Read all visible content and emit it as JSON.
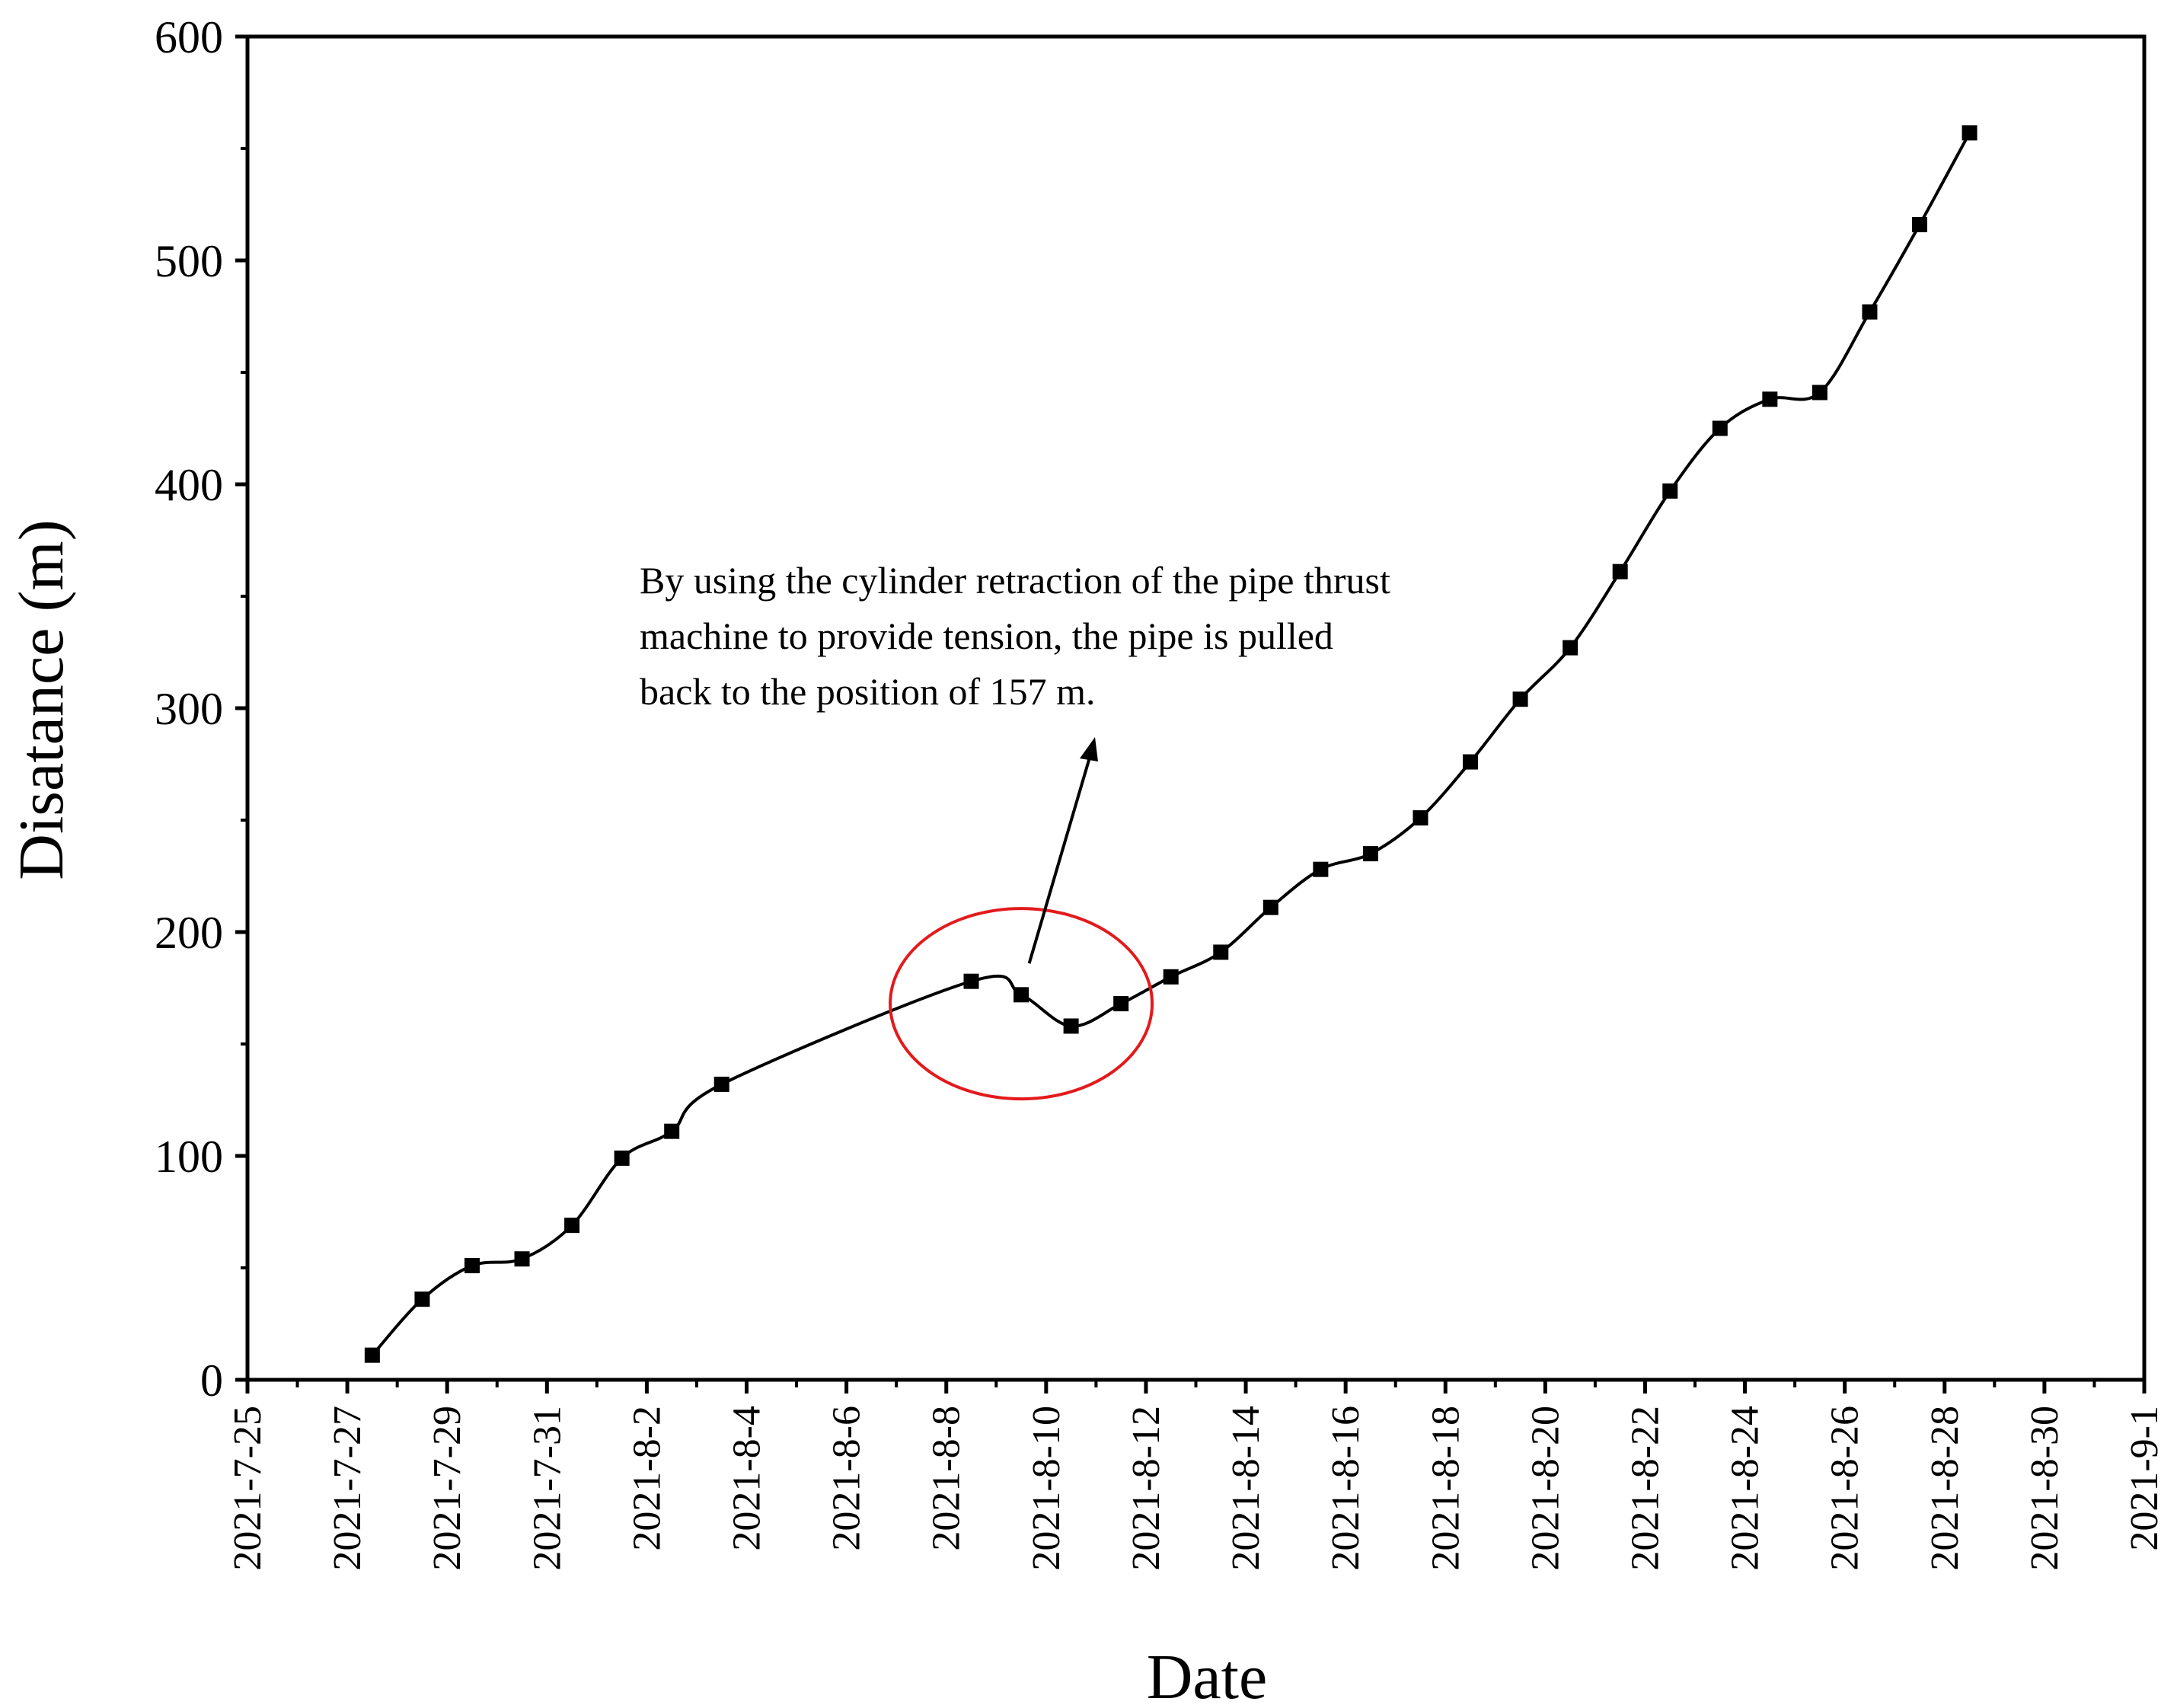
{
  "chart_data": {
    "type": "line",
    "xlabel": "Date",
    "ylabel": "Disatance (m)",
    "xlim": [
      "2021-7-25",
      "2021-9-1"
    ],
    "ylim": [
      0,
      600
    ],
    "x_ticks": [
      "2021-7-25",
      "2021-7-27",
      "2021-7-29",
      "2021-7-31",
      "2021-8-2",
      "2021-8-4",
      "2021-8-6",
      "2021-8-8",
      "2021-8-10",
      "2021-8-12",
      "2021-8-14",
      "2021-8-16",
      "2021-8-18",
      "2021-8-20",
      "2021-8-22",
      "2021-8-24",
      "2021-8-26",
      "2021-8-28",
      "2021-8-30",
      "2021-9-1"
    ],
    "y_ticks": [
      "0",
      "100",
      "200",
      "300",
      "400",
      "500",
      "600"
    ],
    "grid": false,
    "series": [
      {
        "marker": "square",
        "color": "#000000",
        "points": [
          {
            "x": "2021-07-27T12:00",
            "y": 11
          },
          {
            "x": "2021-07-28T12:00",
            "y": 36
          },
          {
            "x": "2021-07-29T12:00",
            "y": 51
          },
          {
            "x": "2021-07-30T12:00",
            "y": 54
          },
          {
            "x": "2021-07-31T12:00",
            "y": 69
          },
          {
            "x": "2021-08-01T12:00",
            "y": 99
          },
          {
            "x": "2021-08-02T12:00",
            "y": 111
          },
          {
            "x": "2021-08-03T12:00",
            "y": 132
          },
          {
            "x": "2021-08-08T12:00",
            "y": 178
          },
          {
            "x": "2021-08-09T12:00",
            "y": 172
          },
          {
            "x": "2021-08-10T12:00",
            "y": 158
          },
          {
            "x": "2021-08-11T12:00",
            "y": 168
          },
          {
            "x": "2021-08-12T12:00",
            "y": 180
          },
          {
            "x": "2021-08-13T12:00",
            "y": 191
          },
          {
            "x": "2021-08-14T12:00",
            "y": 211
          },
          {
            "x": "2021-08-15T12:00",
            "y": 228
          },
          {
            "x": "2021-08-16T12:00",
            "y": 235
          },
          {
            "x": "2021-08-17T12:00",
            "y": 251
          },
          {
            "x": "2021-08-18T12:00",
            "y": 276
          },
          {
            "x": "2021-08-19T12:00",
            "y": 304
          },
          {
            "x": "2021-08-20T12:00",
            "y": 327
          },
          {
            "x": "2021-08-21T12:00",
            "y": 361
          },
          {
            "x": "2021-08-22T12:00",
            "y": 397
          },
          {
            "x": "2021-08-23T12:00",
            "y": 425
          },
          {
            "x": "2021-08-24T12:00",
            "y": 438
          },
          {
            "x": "2021-08-25T12:00",
            "y": 441
          },
          {
            "x": "2021-08-26T12:00",
            "y": 477
          },
          {
            "x": "2021-08-27T12:00",
            "y": 516
          },
          {
            "x": "2021-08-28T12:00",
            "y": 557
          }
        ]
      }
    ],
    "annotation": {
      "lines": [
        "By using the cylinder retraction of the pipe thrust",
        "machine to provide tension, the pipe is pulled",
        "back to the position of 157 m."
      ],
      "highlight_color": "#e31a1c"
    }
  }
}
